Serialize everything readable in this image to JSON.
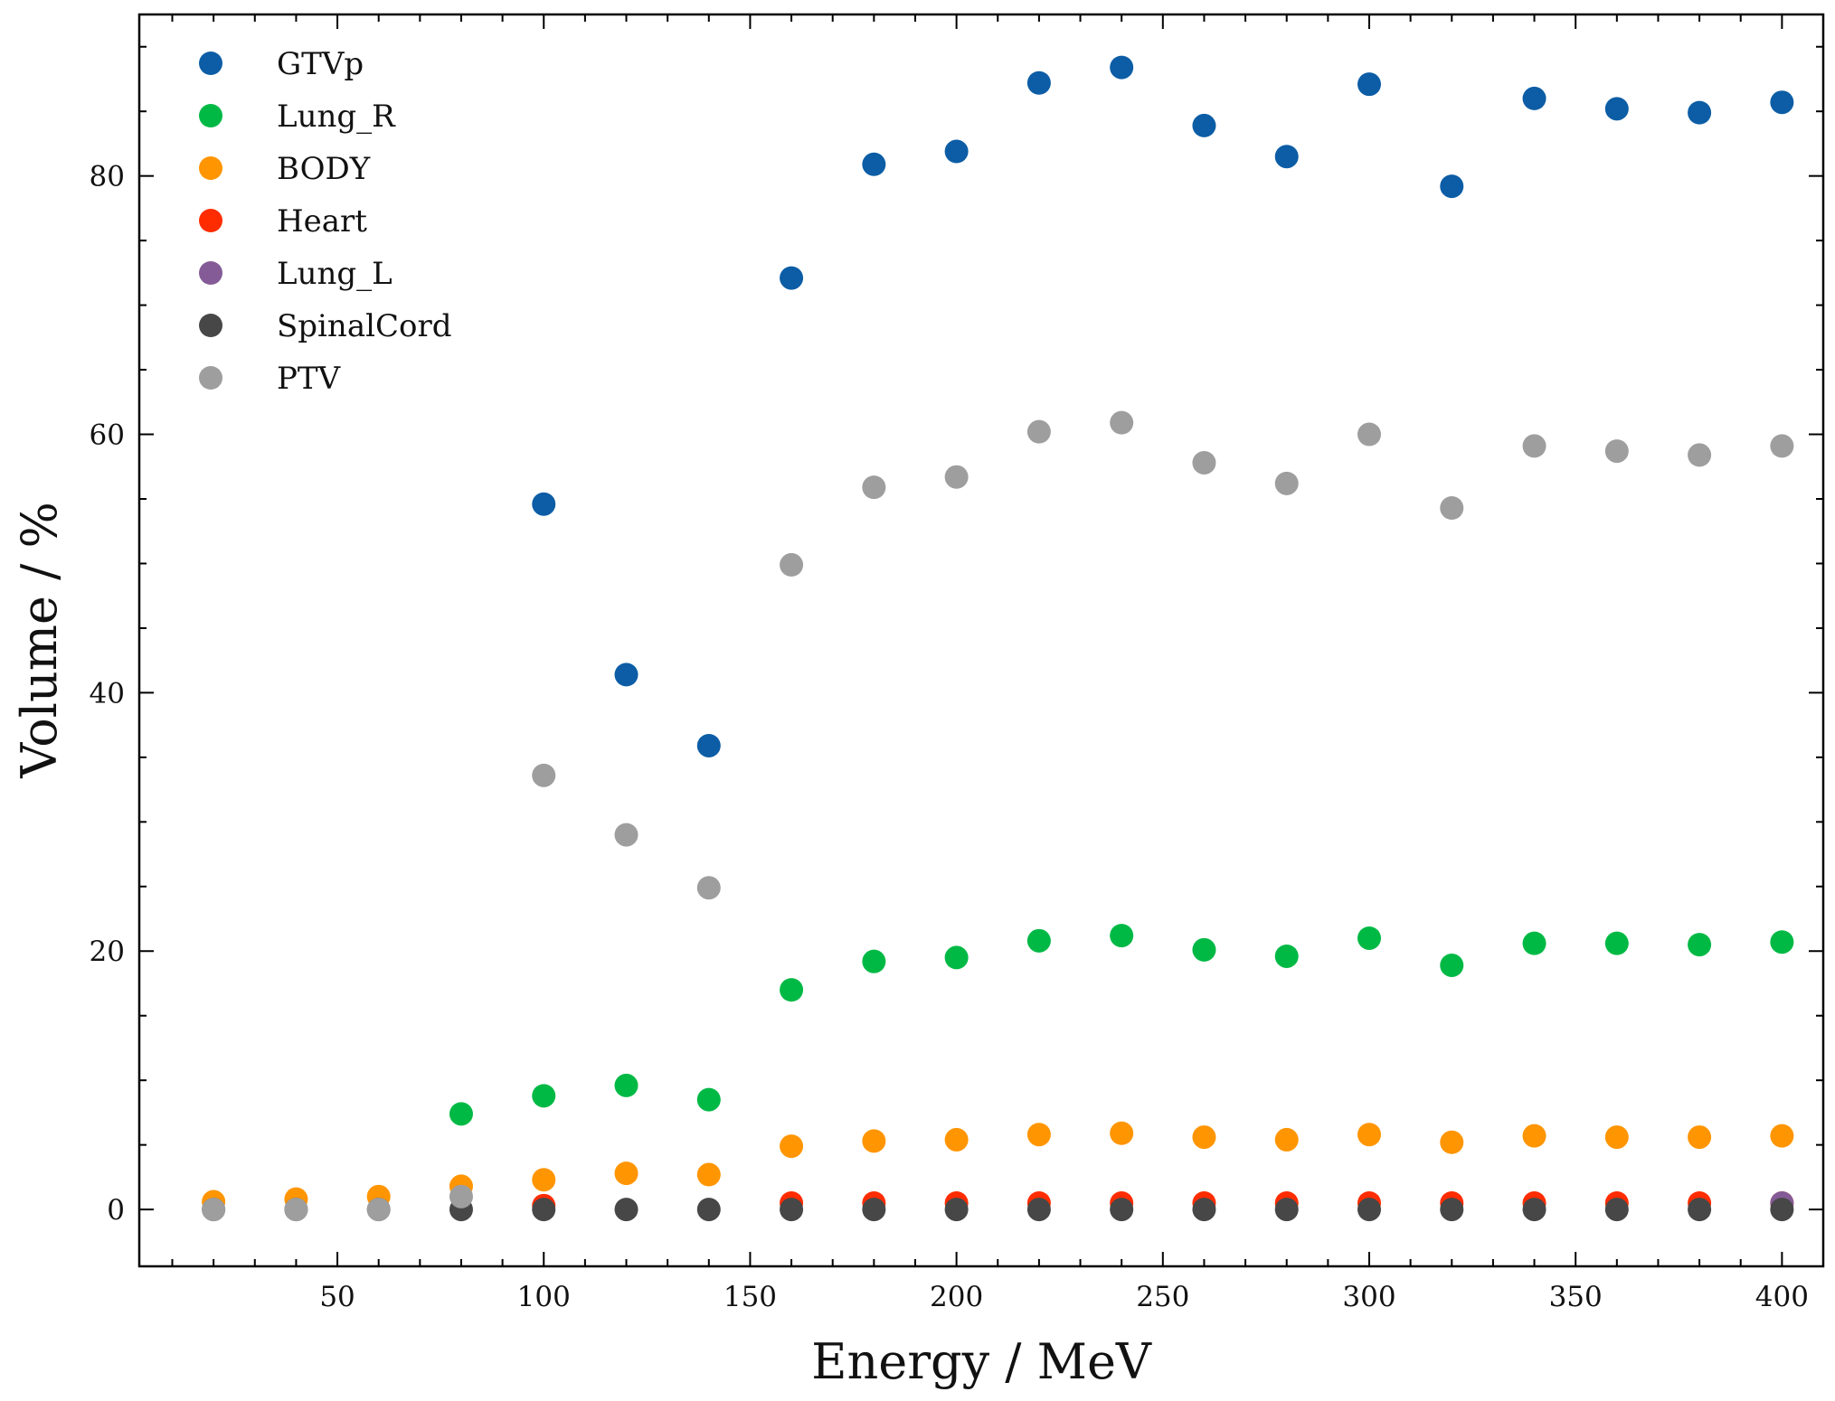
{
  "chart_data": {
    "type": "scatter",
    "xlabel": "Energy / MeV",
    "ylabel": "Volume / %",
    "xlim": [
      2,
      410
    ],
    "ylim": [
      -4.4,
      92.5
    ],
    "x_ticks": [
      50,
      100,
      150,
      200,
      250,
      300,
      350,
      400
    ],
    "y_ticks": [
      0,
      20,
      40,
      60,
      80
    ],
    "grid": false,
    "legend_position": "top-left",
    "x": [
      20,
      40,
      60,
      80,
      100,
      120,
      140,
      160,
      180,
      200,
      220,
      240,
      260,
      280,
      300,
      320,
      340,
      360,
      380,
      400
    ],
    "series": [
      {
        "name": "GTVp",
        "color": "#0C5DA5",
        "x": [
          100,
          120,
          140,
          160,
          180,
          200,
          220,
          240,
          260,
          280,
          300,
          320,
          340,
          360,
          380,
          400
        ],
        "values": [
          54.6,
          41.4,
          35.9,
          72.1,
          80.9,
          81.9,
          87.2,
          88.4,
          83.9,
          81.5,
          87.1,
          79.2,
          86.0,
          85.2,
          84.9,
          85.7
        ]
      },
      {
        "name": "Lung_R",
        "color": "#00B945",
        "x": [
          80,
          100,
          120,
          140,
          160,
          180,
          200,
          220,
          240,
          260,
          280,
          300,
          320,
          340,
          360,
          380,
          400
        ],
        "values": [
          7.4,
          8.8,
          9.6,
          8.5,
          17.0,
          19.2,
          19.5,
          20.8,
          21.2,
          20.1,
          19.6,
          21.0,
          18.9,
          20.6,
          20.6,
          20.5,
          20.7
        ]
      },
      {
        "name": "BODY",
        "color": "#FF9500",
        "x": [
          20,
          40,
          60,
          80,
          100,
          120,
          140,
          160,
          180,
          200,
          220,
          240,
          260,
          280,
          300,
          320,
          340,
          360,
          380,
          400
        ],
        "values": [
          0.6,
          0.8,
          1.0,
          1.8,
          2.3,
          2.8,
          2.7,
          4.9,
          5.3,
          5.4,
          5.8,
          5.9,
          5.6,
          5.4,
          5.8,
          5.2,
          5.7,
          5.6,
          5.6,
          5.7
        ]
      },
      {
        "name": "Heart",
        "color": "#FF2C00",
        "x": [
          100,
          160,
          180,
          200,
          220,
          240,
          260,
          280,
          300,
          320,
          340,
          360,
          380,
          400
        ],
        "values": [
          0.3,
          0.5,
          0.5,
          0.5,
          0.5,
          0.5,
          0.5,
          0.5,
          0.5,
          0.5,
          0.5,
          0.5,
          0.5,
          0.5
        ]
      },
      {
        "name": "Lung_L",
        "color": "#845B97",
        "x": [
          400
        ],
        "values": [
          0.5
        ]
      },
      {
        "name": "SpinalCord",
        "color": "#474747",
        "x": [
          20,
          40,
          60,
          80,
          100,
          120,
          140,
          160,
          180,
          200,
          220,
          240,
          260,
          280,
          300,
          320,
          340,
          360,
          380,
          400
        ],
        "values": [
          0,
          0,
          0,
          0,
          0,
          0,
          0,
          0,
          0,
          0,
          0,
          0,
          0,
          0,
          0,
          0,
          0,
          0,
          0,
          0
        ]
      },
      {
        "name": "PTV",
        "color": "#9E9E9E",
        "x": [
          20,
          40,
          60,
          80,
          100,
          120,
          140,
          160,
          180,
          200,
          220,
          240,
          260,
          280,
          300,
          320,
          340,
          360,
          380,
          400
        ],
        "values": [
          0,
          0,
          0,
          1.0,
          33.6,
          29.0,
          24.9,
          49.9,
          55.9,
          56.7,
          60.2,
          60.9,
          57.8,
          56.2,
          60.0,
          54.3,
          59.1,
          58.7,
          58.4,
          59.1
        ]
      }
    ]
  }
}
